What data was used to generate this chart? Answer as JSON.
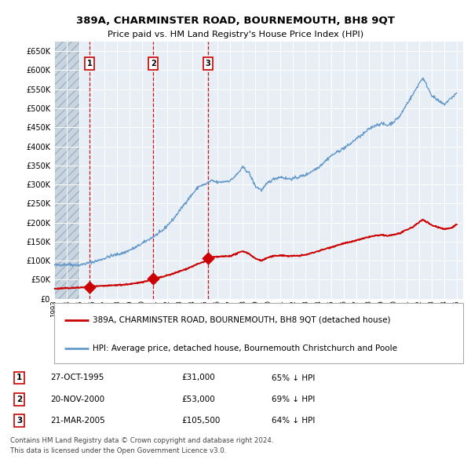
{
  "title": "389A, CHARMINSTER ROAD, BOURNEMOUTH, BH8 9QT",
  "subtitle": "Price paid vs. HM Land Registry's House Price Index (HPI)",
  "transactions": [
    {
      "num": 1,
      "date": "27-OCT-1995",
      "year": 1995.82,
      "price": 31000,
      "pct": "65%",
      "dir": "↓"
    },
    {
      "num": 2,
      "date": "20-NOV-2000",
      "year": 2000.88,
      "price": 53000,
      "pct": "69%",
      "dir": "↓"
    },
    {
      "num": 3,
      "date": "21-MAR-2005",
      "year": 2005.22,
      "price": 105500,
      "pct": "64%",
      "dir": "↓"
    }
  ],
  "legend_property": "389A, CHARMINSTER ROAD, BOURNEMOUTH, BH8 9QT (detached house)",
  "legend_hpi": "HPI: Average price, detached house, Bournemouth Christchurch and Poole",
  "footer1": "Contains HM Land Registry data © Crown copyright and database right 2024.",
  "footer2": "This data is licensed under the Open Government Licence v3.0.",
  "property_color": "#cc0000",
  "hpi_color": "#6699cc",
  "vline_color": "#cc0000",
  "background_color": "#e8eef5",
  "ylim": [
    0,
    675000
  ],
  "yticks": [
    0,
    50000,
    100000,
    150000,
    200000,
    250000,
    300000,
    350000,
    400000,
    450000,
    500000,
    550000,
    600000,
    650000
  ]
}
